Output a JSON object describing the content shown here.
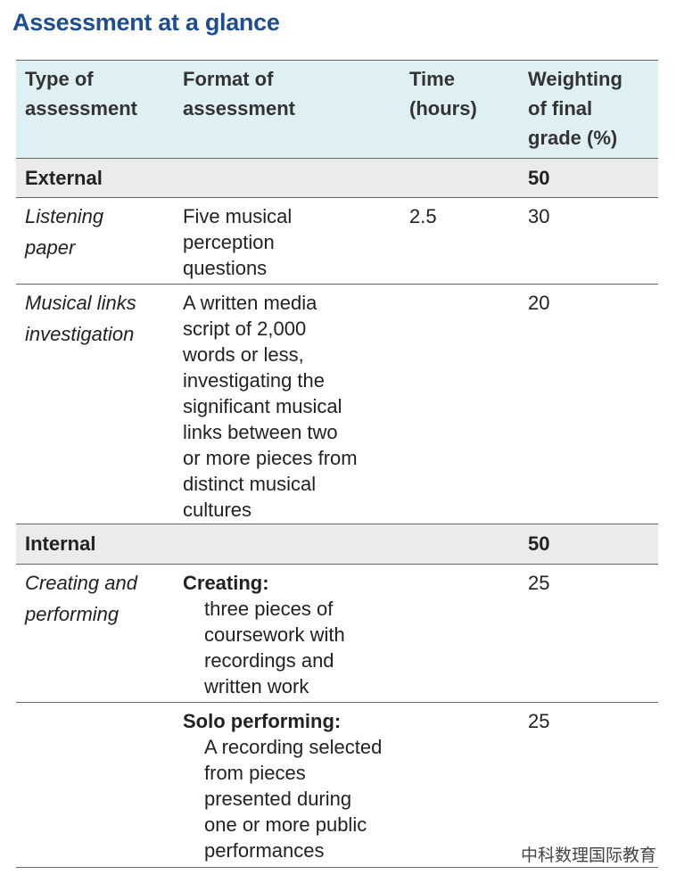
{
  "title": "Assessment at a glance",
  "table": {
    "header": [
      [
        "Type of",
        "assessment"
      ],
      [
        "Format of",
        "assessment"
      ],
      [
        "Time",
        "(hours)"
      ],
      [
        "Weighting",
        "of final",
        "grade (%)"
      ]
    ],
    "rows": [
      {
        "section": "External",
        "weighting": 50
      },
      {
        "type": [
          "Listening",
          "paper"
        ],
        "format": [
          "Five musical",
          "perception",
          "questions"
        ],
        "time": 2.5,
        "weighting": 30
      },
      {
        "type": [
          "Musical links",
          "investigation"
        ],
        "format": [
          "A written media",
          "script of 2,000",
          "words or less,",
          "investigating the",
          "significant musical",
          "links between two",
          "or more pieces from",
          "distinct musical",
          "cultures"
        ],
        "weighting": 20
      },
      {
        "section": "Internal",
        "weighting": 50
      },
      {
        "type": [
          "Creating and",
          "performing"
        ],
        "format_heading": "Creating:",
        "format": [
          "three pieces of",
          "coursework with",
          "recordings and",
          "written work"
        ],
        "weighting": 25
      },
      {
        "format_heading": "Solo performing:",
        "format": [
          "A recording selected",
          "from pieces",
          "presented during",
          "one or more public",
          "performances"
        ],
        "weighting": 25
      }
    ]
  },
  "watermark": "中科数理国际教育"
}
